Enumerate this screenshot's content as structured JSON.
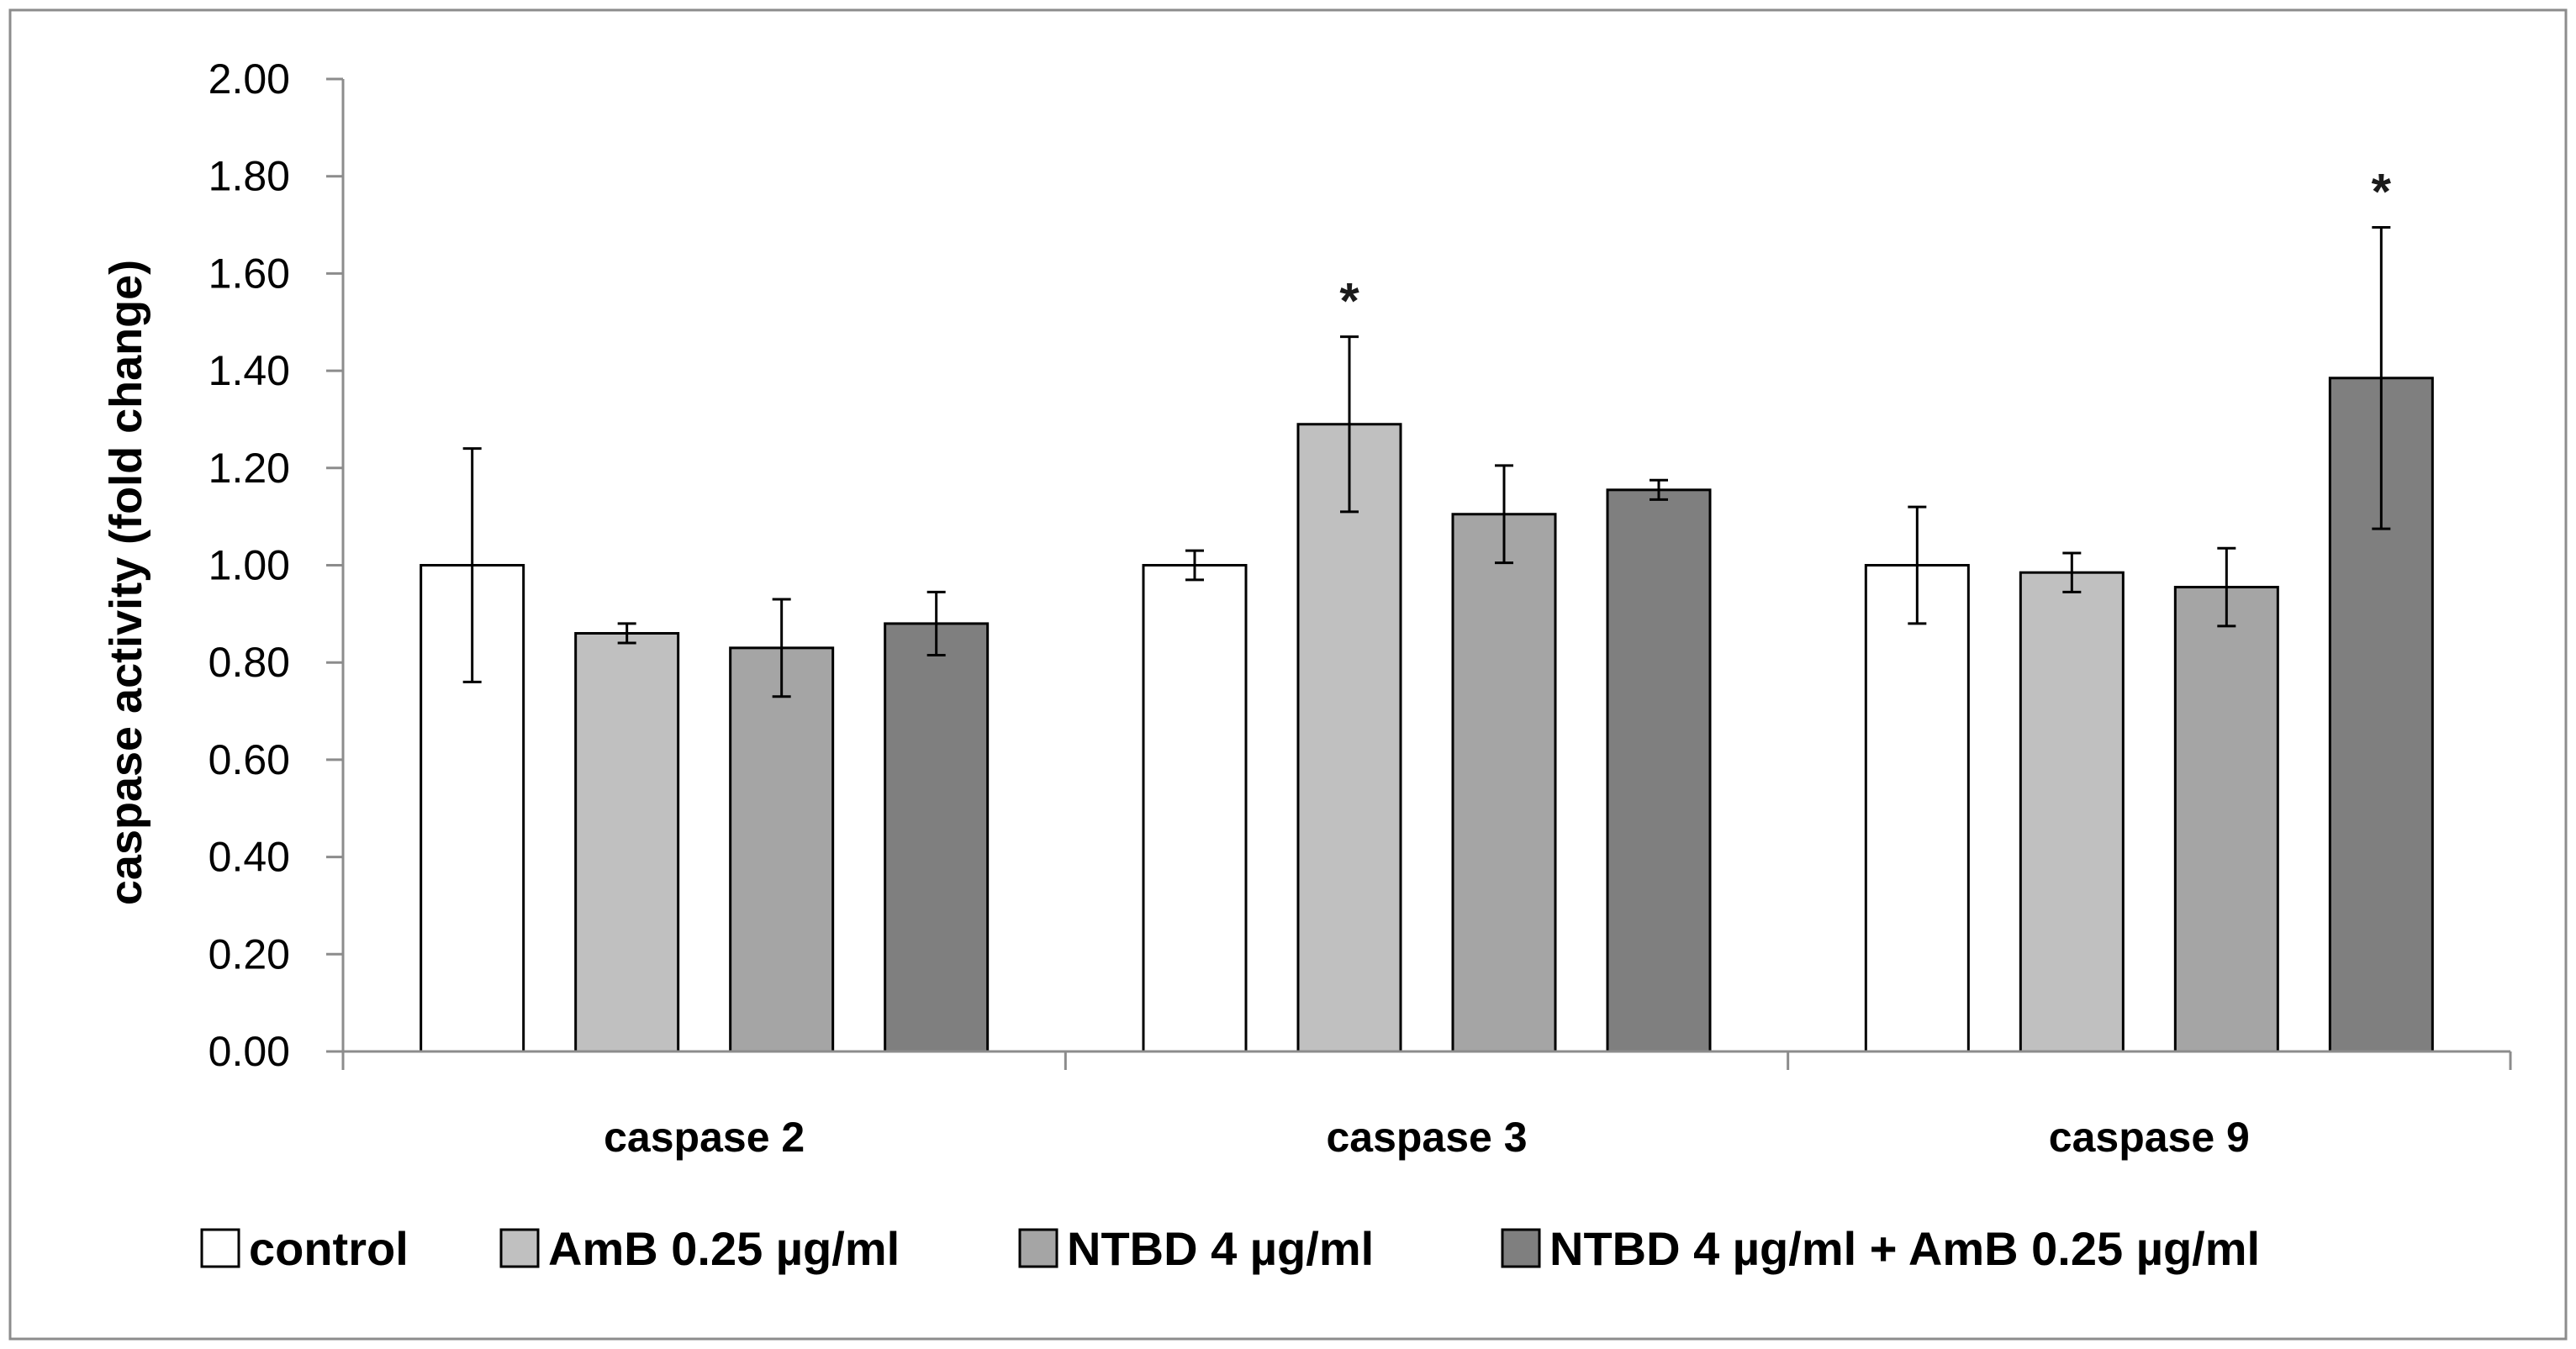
{
  "chart_data": {
    "type": "bar",
    "title": "",
    "xlabel": "",
    "ylabel": "caspase activity (fold change)",
    "ylim": [
      0,
      2
    ],
    "yticks": [
      "0.00",
      "0.20",
      "0.40",
      "0.60",
      "0.80",
      "1.00",
      "1.20",
      "1.40",
      "1.60",
      "1.80",
      "2.00"
    ],
    "categories": [
      "caspase 2",
      "caspase 3",
      "caspase 9"
    ],
    "series": [
      {
        "name": "control",
        "color": "#ffffff",
        "values": [
          1.0,
          1.0,
          1.0
        ],
        "errors": [
          0.24,
          0.03,
          0.12
        ],
        "significant": [
          false,
          false,
          false
        ]
      },
      {
        "name": "AmB 0.25 µg/ml",
        "color": "#c0c0c0",
        "values": [
          0.86,
          1.29,
          0.985
        ],
        "errors": [
          0.02,
          0.18,
          0.04
        ],
        "significant": [
          false,
          true,
          false
        ]
      },
      {
        "name": "NTBD 4 µg/ml",
        "color": "#a5a5a5",
        "values": [
          0.83,
          1.105,
          0.955
        ],
        "errors": [
          0.1,
          0.1,
          0.08
        ],
        "significant": [
          false,
          false,
          false
        ]
      },
      {
        "name": "NTBD 4 µg/ml + AmB 0.25 µg/ml",
        "color": "#7f7f7f",
        "values": [
          0.88,
          1.155,
          1.385
        ],
        "errors": [
          0.065,
          0.02,
          0.31
        ],
        "significant": [
          false,
          false,
          true
        ]
      }
    ],
    "significance_marker": "*",
    "legend_position": "bottom",
    "grid": false
  }
}
